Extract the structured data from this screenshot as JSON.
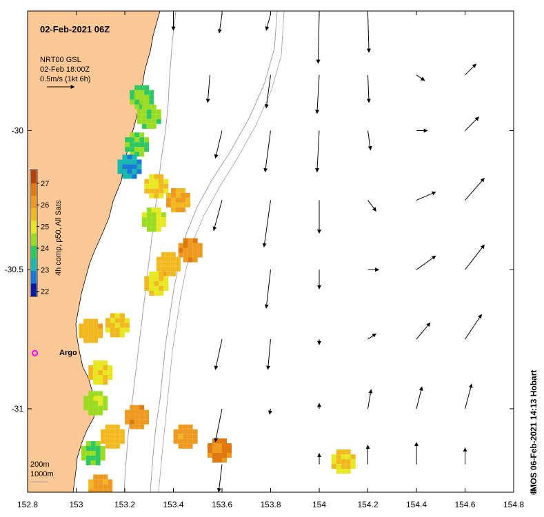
{
  "title": "02-Feb-2021 06Z",
  "current_legend": {
    "line1": "NRT00 GSL",
    "line2": "02-Feb 18:00Z",
    "line3": "0.5m/s (1kt 6h)"
  },
  "colorbar": {
    "label": "4h comp, p50, All Sats",
    "ticks": [
      "27",
      "26",
      "25",
      "24",
      "23",
      "22"
    ],
    "colors": [
      "#0a1aa0",
      "#1a78d8",
      "#18b8b0",
      "#2ec860",
      "#9adc22",
      "#e8e820",
      "#f2b820",
      "#ee9a20",
      "#e07a10",
      "#b84008"
    ]
  },
  "axes": {
    "x_ticks": [
      "152.8",
      "153",
      "153.2",
      "153.4",
      "153.6",
      "153.8",
      "154",
      "154.2",
      "154.4",
      "154.6",
      "154.8"
    ],
    "y_ticks": [
      "-30",
      "-30.5",
      "-31"
    ]
  },
  "platform": {
    "label": "Argo"
  },
  "depth_legend": {
    "line1": "200m",
    "line2": "1000m"
  },
  "credit": "IMOS 06-Feb-2021 14:13 Hobart",
  "colors": {
    "land": "#fcc896",
    "argo": "#ff00ff",
    "isobath": "#a0a0a0"
  },
  "chart_data": {
    "type": "map",
    "title": "02-Feb-2021 06Z",
    "x_range": [
      152.8,
      154.8
    ],
    "y_range": [
      -31.3,
      -29.57
    ],
    "argo": {
      "lon": 152.83,
      "lat": -30.8
    },
    "sst_patches": [
      {
        "lon": 153.27,
        "lat": -29.88,
        "value": 24.2
      },
      {
        "lon": 153.3,
        "lat": -29.95,
        "value": 24.3
      },
      {
        "lon": 153.25,
        "lat": -30.05,
        "value": 24.0
      },
      {
        "lon": 153.22,
        "lat": -30.13,
        "value": 23.0
      },
      {
        "lon": 153.33,
        "lat": -30.2,
        "value": 25.3
      },
      {
        "lon": 153.42,
        "lat": -30.25,
        "value": 25.8
      },
      {
        "lon": 153.32,
        "lat": -30.32,
        "value": 24.8
      },
      {
        "lon": 153.47,
        "lat": -30.43,
        "value": 26.3
      },
      {
        "lon": 153.38,
        "lat": -30.48,
        "value": 25.6
      },
      {
        "lon": 153.33,
        "lat": -30.55,
        "value": 25.2
      },
      {
        "lon": 153.06,
        "lat": -30.72,
        "value": 25.6
      },
      {
        "lon": 153.17,
        "lat": -30.7,
        "value": 25.3
      },
      {
        "lon": 153.1,
        "lat": -30.87,
        "value": 25.2
      },
      {
        "lon": 153.08,
        "lat": -30.98,
        "value": 24.5
      },
      {
        "lon": 153.25,
        "lat": -31.03,
        "value": 26.2
      },
      {
        "lon": 153.15,
        "lat": -31.1,
        "value": 25.5
      },
      {
        "lon": 153.07,
        "lat": -31.16,
        "value": 24.2
      },
      {
        "lon": 153.45,
        "lat": -31.1,
        "value": 26.1
      },
      {
        "lon": 153.59,
        "lat": -31.15,
        "value": 26.5
      },
      {
        "lon": 154.1,
        "lat": -31.19,
        "value": 25.2
      },
      {
        "lon": 153.1,
        "lat": -31.28,
        "value": 26.0
      }
    ],
    "current_arrows": [
      {
        "lon": 153.6,
        "lat": -29.58,
        "u": -0.05,
        "v": -0.35
      },
      {
        "lon": 153.8,
        "lat": -29.58,
        "u": -0.08,
        "v": -0.3
      },
      {
        "lon": 154.0,
        "lat": -29.58,
        "u": -0.02,
        "v": -0.9
      },
      {
        "lon": 154.2,
        "lat": -29.58,
        "u": 0.02,
        "v": -0.7
      },
      {
        "lon": 153.4,
        "lat": -29.58,
        "u": 0.0,
        "v": -0.3
      },
      {
        "lon": 153.55,
        "lat": -29.8,
        "u": -0.04,
        "v": -0.5
      },
      {
        "lon": 153.8,
        "lat": -29.8,
        "u": -0.08,
        "v": -0.6
      },
      {
        "lon": 154.0,
        "lat": -29.8,
        "u": -0.04,
        "v": -0.7
      },
      {
        "lon": 154.2,
        "lat": -29.8,
        "u": 0.02,
        "v": -0.5
      },
      {
        "lon": 154.4,
        "lat": -29.8,
        "u": 0.15,
        "v": -0.1
      },
      {
        "lon": 154.6,
        "lat": -29.8,
        "u": 0.2,
        "v": 0.2
      },
      {
        "lon": 153.6,
        "lat": -30.0,
        "u": -0.12,
        "v": -0.5
      },
      {
        "lon": 153.8,
        "lat": -30.0,
        "u": -0.1,
        "v": -0.75
      },
      {
        "lon": 154.0,
        "lat": -30.0,
        "u": -0.04,
        "v": -0.75
      },
      {
        "lon": 154.2,
        "lat": -30.0,
        "u": 0.05,
        "v": -0.35
      },
      {
        "lon": 154.4,
        "lat": -30.0,
        "u": 0.2,
        "v": 0.0
      },
      {
        "lon": 154.6,
        "lat": -30.0,
        "u": 0.25,
        "v": 0.25
      },
      {
        "lon": 153.6,
        "lat": -30.25,
        "u": -0.15,
        "v": -0.55
      },
      {
        "lon": 153.8,
        "lat": -30.25,
        "u": -0.12,
        "v": -0.85
      },
      {
        "lon": 154.0,
        "lat": -30.25,
        "u": 0.0,
        "v": -0.6
      },
      {
        "lon": 154.2,
        "lat": -30.25,
        "u": 0.15,
        "v": -0.2
      },
      {
        "lon": 154.4,
        "lat": -30.25,
        "u": 0.35,
        "v": 0.15
      },
      {
        "lon": 154.6,
        "lat": -30.25,
        "u": 0.35,
        "v": 0.4
      },
      {
        "lon": 153.8,
        "lat": -30.5,
        "u": -0.08,
        "v": -0.7
      },
      {
        "lon": 154.0,
        "lat": -30.5,
        "u": 0.0,
        "v": -0.35
      },
      {
        "lon": 154.2,
        "lat": -30.5,
        "u": 0.2,
        "v": 0.0
      },
      {
        "lon": 154.4,
        "lat": -30.5,
        "u": 0.35,
        "v": 0.25
      },
      {
        "lon": 154.6,
        "lat": -30.5,
        "u": 0.35,
        "v": 0.45
      },
      {
        "lon": 153.6,
        "lat": -30.75,
        "u": -0.12,
        "v": -0.55
      },
      {
        "lon": 153.8,
        "lat": -30.75,
        "u": -0.05,
        "v": -0.55
      },
      {
        "lon": 154.0,
        "lat": -30.75,
        "u": 0.0,
        "v": -0.1
      },
      {
        "lon": 154.2,
        "lat": -30.75,
        "u": 0.15,
        "v": 0.1
      },
      {
        "lon": 154.4,
        "lat": -30.75,
        "u": 0.25,
        "v": 0.3
      },
      {
        "lon": 154.6,
        "lat": -30.75,
        "u": 0.3,
        "v": 0.45
      },
      {
        "lon": 153.6,
        "lat": -31.0,
        "u": -0.12,
        "v": -0.6
      },
      {
        "lon": 153.8,
        "lat": -31.0,
        "u": -0.02,
        "v": -0.1
      },
      {
        "lon": 154.0,
        "lat": -31.0,
        "u": 0.0,
        "v": 0.1
      },
      {
        "lon": 154.2,
        "lat": -31.0,
        "u": 0.06,
        "v": 0.35
      },
      {
        "lon": 154.4,
        "lat": -31.0,
        "u": 0.1,
        "v": 0.4
      },
      {
        "lon": 154.6,
        "lat": -31.0,
        "u": 0.12,
        "v": 0.45
      },
      {
        "lon": 153.6,
        "lat": -31.2,
        "u": -0.06,
        "v": -0.5
      },
      {
        "lon": 154.0,
        "lat": -31.2,
        "u": 0.0,
        "v": 0.2
      },
      {
        "lon": 154.2,
        "lat": -31.2,
        "u": 0.0,
        "v": 0.35
      },
      {
        "lon": 154.4,
        "lat": -31.2,
        "u": 0.0,
        "v": 0.4
      },
      {
        "lon": 154.6,
        "lat": -31.2,
        "u": 0.0,
        "v": 0.3
      }
    ]
  }
}
